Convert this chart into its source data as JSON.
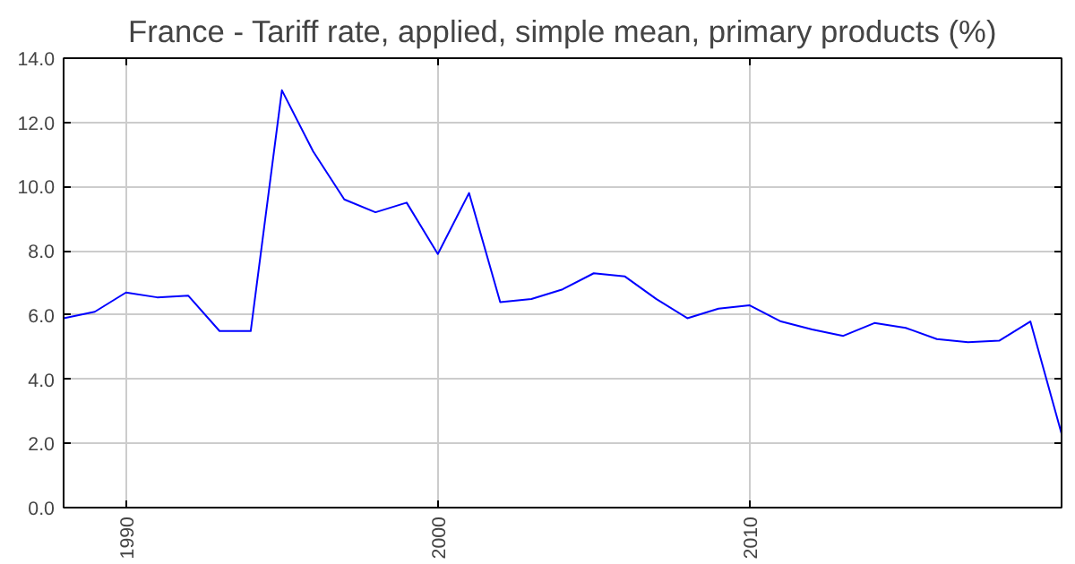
{
  "chart_data": {
    "type": "line",
    "title": "France - Tariff rate, applied, simple mean, primary products (%)",
    "x": [
      1988,
      1989,
      1990,
      1991,
      1992,
      1993,
      1994,
      1995,
      1996,
      1997,
      1998,
      1999,
      2000,
      2001,
      2002,
      2003,
      2004,
      2005,
      2006,
      2007,
      2008,
      2009,
      2010,
      2011,
      2012,
      2013,
      2014,
      2015,
      2016,
      2017,
      2018,
      2019,
      2020
    ],
    "series": [
      {
        "color": "#0000ff",
        "values": [
          5.9,
          6.1,
          6.7,
          6.55,
          6.6,
          5.5,
          5.5,
          13.0,
          11.1,
          9.6,
          9.2,
          9.5,
          7.9,
          9.8,
          6.4,
          6.5,
          6.8,
          7.3,
          7.2,
          6.5,
          5.9,
          6.2,
          6.3,
          5.8,
          5.55,
          5.35,
          5.75,
          5.6,
          5.25,
          5.15,
          5.2,
          5.8,
          2.3
        ]
      }
    ],
    "xlim": [
      1988,
      2020
    ],
    "xticks": [
      1990,
      2000,
      2010
    ],
    "ylim": [
      0,
      14
    ],
    "yticks": [
      {
        "value": 0,
        "label": "0.0"
      },
      {
        "value": 2,
        "label": "2.0"
      },
      {
        "value": 4,
        "label": "4.0"
      },
      {
        "value": 6,
        "label": "6.0"
      },
      {
        "value": 8,
        "label": "8.0"
      },
      {
        "value": 10,
        "label": "10.0"
      },
      {
        "value": 12,
        "label": "12.0"
      },
      {
        "value": 14,
        "label": "14.0"
      }
    ],
    "grid": true,
    "marker": "none",
    "line_style": "solid"
  }
}
